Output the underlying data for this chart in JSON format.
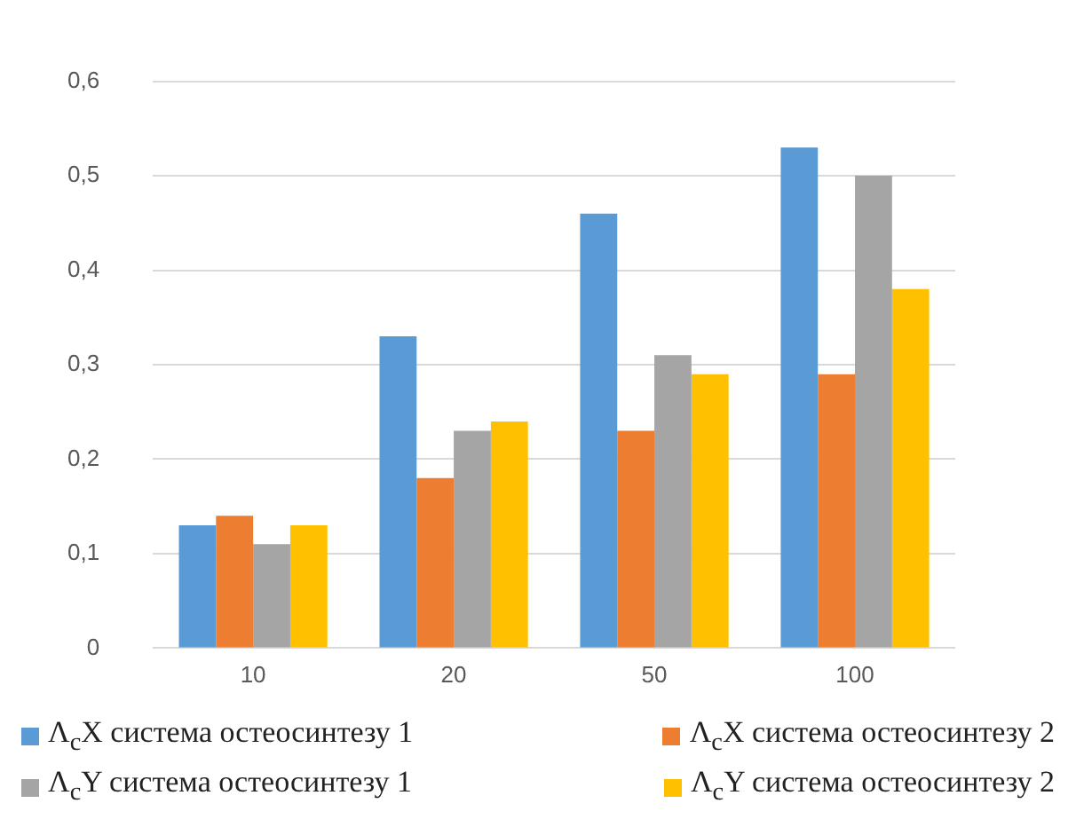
{
  "chart_data": {
    "type": "bar",
    "categories": [
      "10",
      "20",
      "50",
      "100"
    ],
    "series": [
      {
        "name": "Λ$_{c}$X система остеосинтезу 1",
        "color": "#5b9bd5",
        "values": [
          0.13,
          0.33,
          0.46,
          0.53
        ]
      },
      {
        "name": "Λ$_{c}$X система остеосинтезу 2",
        "color": "#ed7d31",
        "values": [
          0.14,
          0.18,
          0.23,
          0.29
        ]
      },
      {
        "name": "Λ$_{c}$Y система остеосинтезу 1",
        "color": "#a5a5a5",
        "values": [
          0.11,
          0.23,
          0.31,
          0.5
        ]
      },
      {
        "name": "Λ$_{c}$Y система остеосинтезу 2",
        "color": "#ffc000",
        "values": [
          0.13,
          0.24,
          0.29,
          0.38
        ]
      }
    ],
    "ylim": [
      0,
      0.6
    ],
    "yticks": [
      0,
      {
        "value": 0.1,
        "label": "0,1"
      },
      {
        "value": 0.2,
        "label": "0,2"
      },
      {
        "value": 0.3,
        "label": "0,3"
      },
      {
        "value": 0.4,
        "label": "0,4"
      },
      {
        "value": 0.5,
        "label": "0,5"
      },
      {
        "value": 0.6,
        "label": "0,6"
      }
    ],
    "grid": "y",
    "legend": "bottom"
  }
}
